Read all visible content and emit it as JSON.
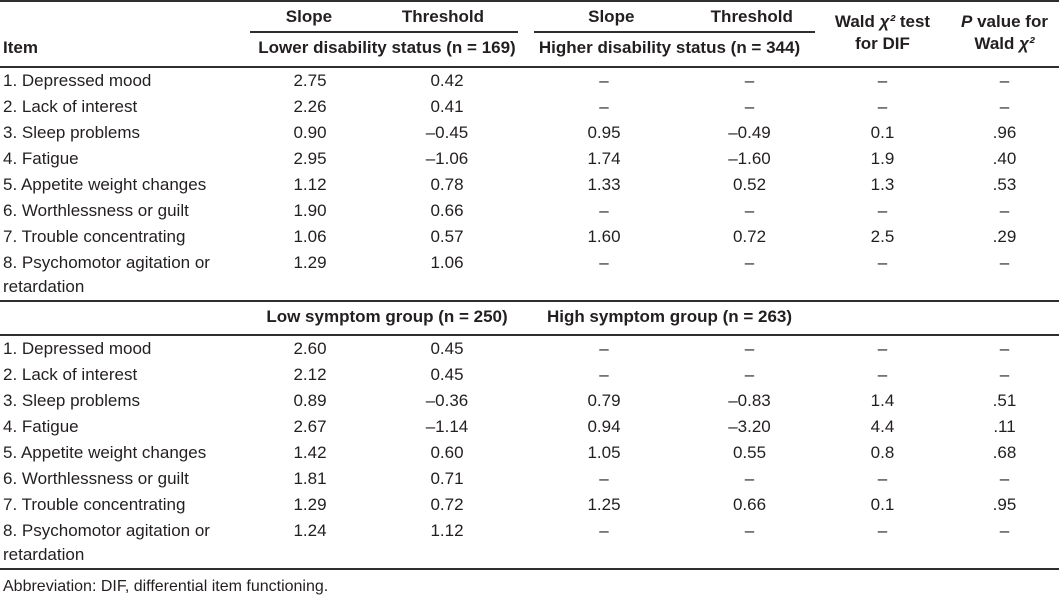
{
  "header": {
    "item": "Item",
    "group1": {
      "slope": "Slope",
      "threshold": "Threshold",
      "subtitle": "Lower disability status (n = 169)"
    },
    "group2": {
      "slope": "Slope",
      "threshold": "Threshold",
      "subtitle": "Higher disability status (n = 344)"
    },
    "wald": {
      "pre": "Wald ",
      "chi": "χ²",
      "post": " test",
      "line2": "for DIF"
    },
    "p": {
      "italic": "P",
      "rest": " value for",
      "line2_pre": "Wald ",
      "chi": "χ²"
    }
  },
  "section1": {
    "rows": [
      {
        "item": "1. Depressed mood",
        "g1_slope": "2.75",
        "g1_threshold": "0.42",
        "g2_slope": "–",
        "g2_threshold": "–",
        "wald": "–",
        "p": "–"
      },
      {
        "item": "2. Lack of interest",
        "g1_slope": "2.26",
        "g1_threshold": "0.41",
        "g2_slope": "–",
        "g2_threshold": "–",
        "wald": "–",
        "p": "–"
      },
      {
        "item": "3. Sleep problems",
        "g1_slope": "0.90",
        "g1_threshold": "–0.45",
        "g2_slope": "0.95",
        "g2_threshold": "–0.49",
        "wald": "0.1",
        "p": ".96"
      },
      {
        "item": "4. Fatigue",
        "g1_slope": "2.95",
        "g1_threshold": "–1.06",
        "g2_slope": "1.74",
        "g2_threshold": "–1.60",
        "wald": "1.9",
        "p": ".40"
      },
      {
        "item": "5. Appetite weight changes",
        "g1_slope": "1.12",
        "g1_threshold": "0.78",
        "g2_slope": "1.33",
        "g2_threshold": "0.52",
        "wald": "1.3",
        "p": ".53"
      },
      {
        "item": "6. Worthlessness or guilt",
        "g1_slope": "1.90",
        "g1_threshold": "0.66",
        "g2_slope": "–",
        "g2_threshold": "–",
        "wald": "–",
        "p": "–"
      },
      {
        "item": "7. Trouble concentrating",
        "g1_slope": "1.06",
        "g1_threshold": "0.57",
        "g2_slope": "1.60",
        "g2_threshold": "0.72",
        "wald": "2.5",
        "p": ".29"
      },
      {
        "item": "8. Psychomotor agitation or retardation",
        "g1_slope": "1.29",
        "g1_threshold": "1.06",
        "g2_slope": "–",
        "g2_threshold": "–",
        "wald": "–",
        "p": "–"
      }
    ]
  },
  "section2": {
    "group1_subtitle": "Low symptom group (n = 250)",
    "group2_subtitle": "High symptom group (n = 263)",
    "rows": [
      {
        "item": "1. Depressed mood",
        "g1_slope": "2.60",
        "g1_threshold": "0.45",
        "g2_slope": "–",
        "g2_threshold": "–",
        "wald": "–",
        "p": "–"
      },
      {
        "item": "2. Lack of interest",
        "g1_slope": "2.12",
        "g1_threshold": "0.45",
        "g2_slope": "–",
        "g2_threshold": "–",
        "wald": "–",
        "p": "–"
      },
      {
        "item": "3. Sleep problems",
        "g1_slope": "0.89",
        "g1_threshold": "–0.36",
        "g2_slope": "0.79",
        "g2_threshold": "–0.83",
        "wald": "1.4",
        "p": ".51"
      },
      {
        "item": "4. Fatigue",
        "g1_slope": "2.67",
        "g1_threshold": "–1.14",
        "g2_slope": "0.94",
        "g2_threshold": "–3.20",
        "wald": "4.4",
        "p": ".11"
      },
      {
        "item": "5. Appetite weight changes",
        "g1_slope": "1.42",
        "g1_threshold": "0.60",
        "g2_slope": "1.05",
        "g2_threshold": "0.55",
        "wald": "0.8",
        "p": ".68"
      },
      {
        "item": "6. Worthlessness or guilt",
        "g1_slope": "1.81",
        "g1_threshold": "0.71",
        "g2_slope": "–",
        "g2_threshold": "–",
        "wald": "–",
        "p": "–"
      },
      {
        "item": "7. Trouble concentrating",
        "g1_slope": "1.29",
        "g1_threshold": "0.72",
        "g2_slope": "1.25",
        "g2_threshold": "0.66",
        "wald": "0.1",
        "p": ".95"
      },
      {
        "item": "8. Psychomotor agitation or retardation",
        "g1_slope": "1.24",
        "g1_threshold": "1.12",
        "g2_slope": "–",
        "g2_threshold": "–",
        "wald": "–",
        "p": "–"
      }
    ]
  },
  "footnote": "Abbreviation: DIF, differential item functioning.",
  "colors": {
    "text": "#231f20",
    "rule": "#2e2e2e",
    "background": "#ffffff"
  }
}
